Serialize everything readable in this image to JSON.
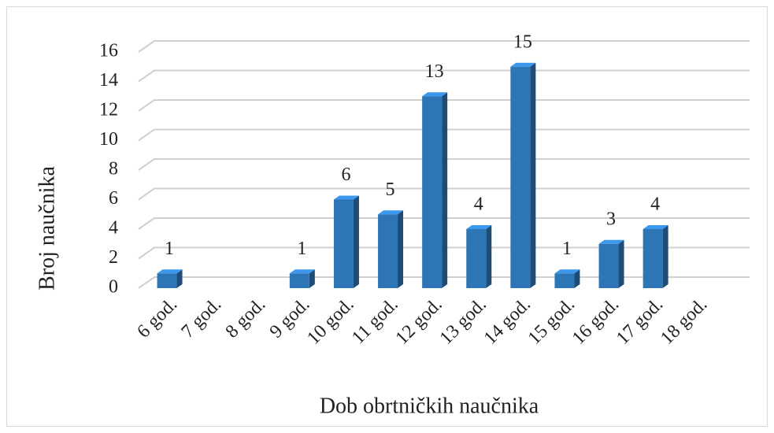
{
  "chart_data": {
    "type": "bar3d",
    "x_label": "Dob obrtničkih naučnika",
    "y_label": "Broj naučnika",
    "categories": [
      "6 god.",
      "7 god.",
      "8 god.",
      "9 god.",
      "10 god.",
      "11 god.",
      "12 god.",
      "13 god.",
      "14 god.",
      "15 god.",
      "16 god.",
      "17 god.",
      "18 god."
    ],
    "values": [
      1,
      0,
      0,
      1,
      6,
      5,
      13,
      4,
      15,
      1,
      3,
      4,
      0
    ],
    "color": "#2e75b6",
    "ylim": [
      0,
      16
    ],
    "yticks": [
      0,
      2,
      4,
      6,
      8,
      10,
      12,
      14,
      16
    ],
    "grid": true
  }
}
